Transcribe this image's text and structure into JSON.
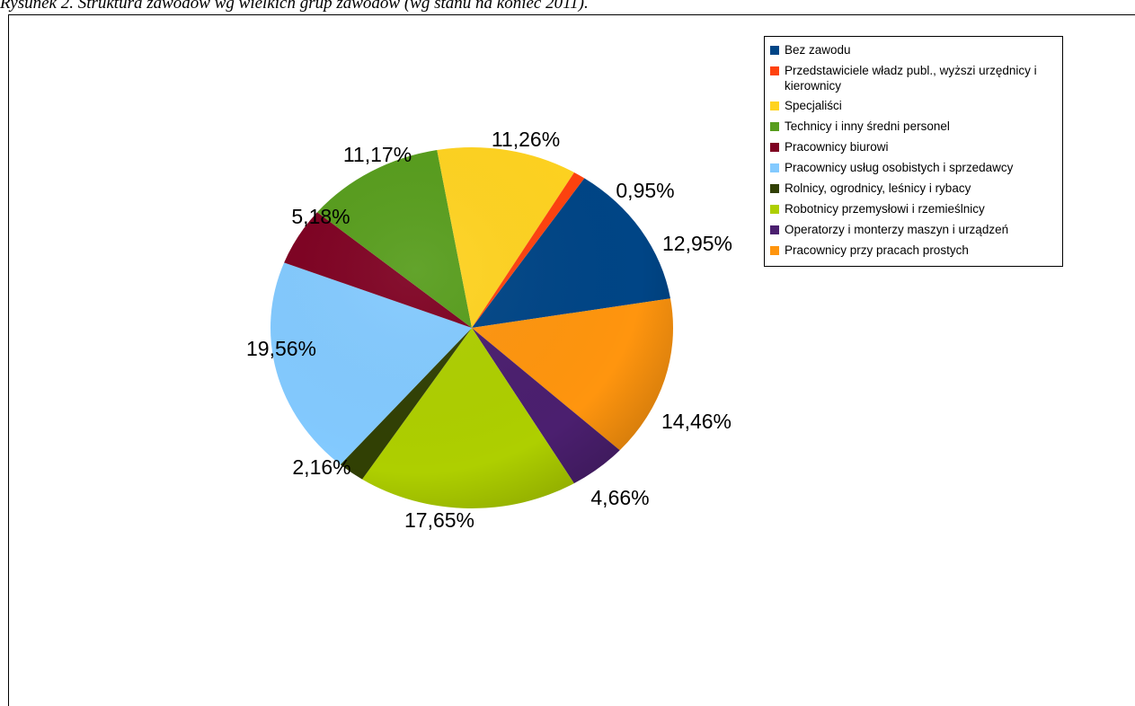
{
  "caption": "Rysunek 2. Struktura zawodów wg wielkich grup zawodów (wg stanu na koniec 2011).",
  "chart_data": {
    "type": "pie",
    "start_angle_deg": 34,
    "series": [
      {
        "name": "Bez zawodu",
        "value": 12.95,
        "label": "12,95%",
        "color": "#004586"
      },
      {
        "name": "Pracownicy przy pracach prostych",
        "value": 14.46,
        "label": "14,46%",
        "color": "#ff950e"
      },
      {
        "name": "Operatorzy i monterzy maszyn i urządzeń",
        "value": 4.66,
        "label": "4,66%",
        "color": "#4b1f6f"
      },
      {
        "name": "Robotnicy przemysłowi i rzemieślnicy",
        "value": 17.65,
        "label": "17,65%",
        "color": "#aecf00"
      },
      {
        "name": "Rolnicy, ogrodnicy, leśnicy i rybacy",
        "value": 2.16,
        "label": "2,16%",
        "color": "#314004"
      },
      {
        "name": "Pracownicy usług osobistych i sprzedawcy",
        "value": 19.56,
        "label": "19,56%",
        "color": "#83caff"
      },
      {
        "name": "Pracownicy biurowi",
        "value": 5.18,
        "label": "5,18%",
        "color": "#7e0021"
      },
      {
        "name": "Technicy i inny średni personel",
        "value": 11.17,
        "label": "11,17%",
        "color": "#579d1c"
      },
      {
        "name": "Specjaliści",
        "value": 11.26,
        "label": "11,26%",
        "color": "#ffd320"
      },
      {
        "name": "Przedstawiciele władz publ., wyższi urzędnicy i kierownicy",
        "value": 0.95,
        "label": "0,95%",
        "color": "#ff420e"
      }
    ],
    "legend": {
      "placement": "right",
      "items": [
        {
          "label": "Bez zawodu",
          "color": "#004586"
        },
        {
          "label": "Przedstawiciele władz publ., wyższi urzędnicy i kierownicy",
          "color": "#ff420e"
        },
        {
          "label": "Specjaliści",
          "color": "#ffd320"
        },
        {
          "label": "Technicy i inny średni personel",
          "color": "#579d1c"
        },
        {
          "label": "Pracownicy biurowi",
          "color": "#7e0021"
        },
        {
          "label": "Pracownicy usług osobistych i sprzedawcy",
          "color": "#83caff"
        },
        {
          "label": "Rolnicy, ogrodnicy, leśnicy i rybacy",
          "color": "#314004"
        },
        {
          "label": "Robotnicy przemysłowi i rzemieślnicy",
          "color": "#aecf00"
        },
        {
          "label": "Operatorzy i monterzy maszyn i urządzeń",
          "color": "#4b1f6f"
        },
        {
          "label": "Pracownicy przy pracach prostych",
          "color": "#ff950e"
        }
      ]
    }
  }
}
